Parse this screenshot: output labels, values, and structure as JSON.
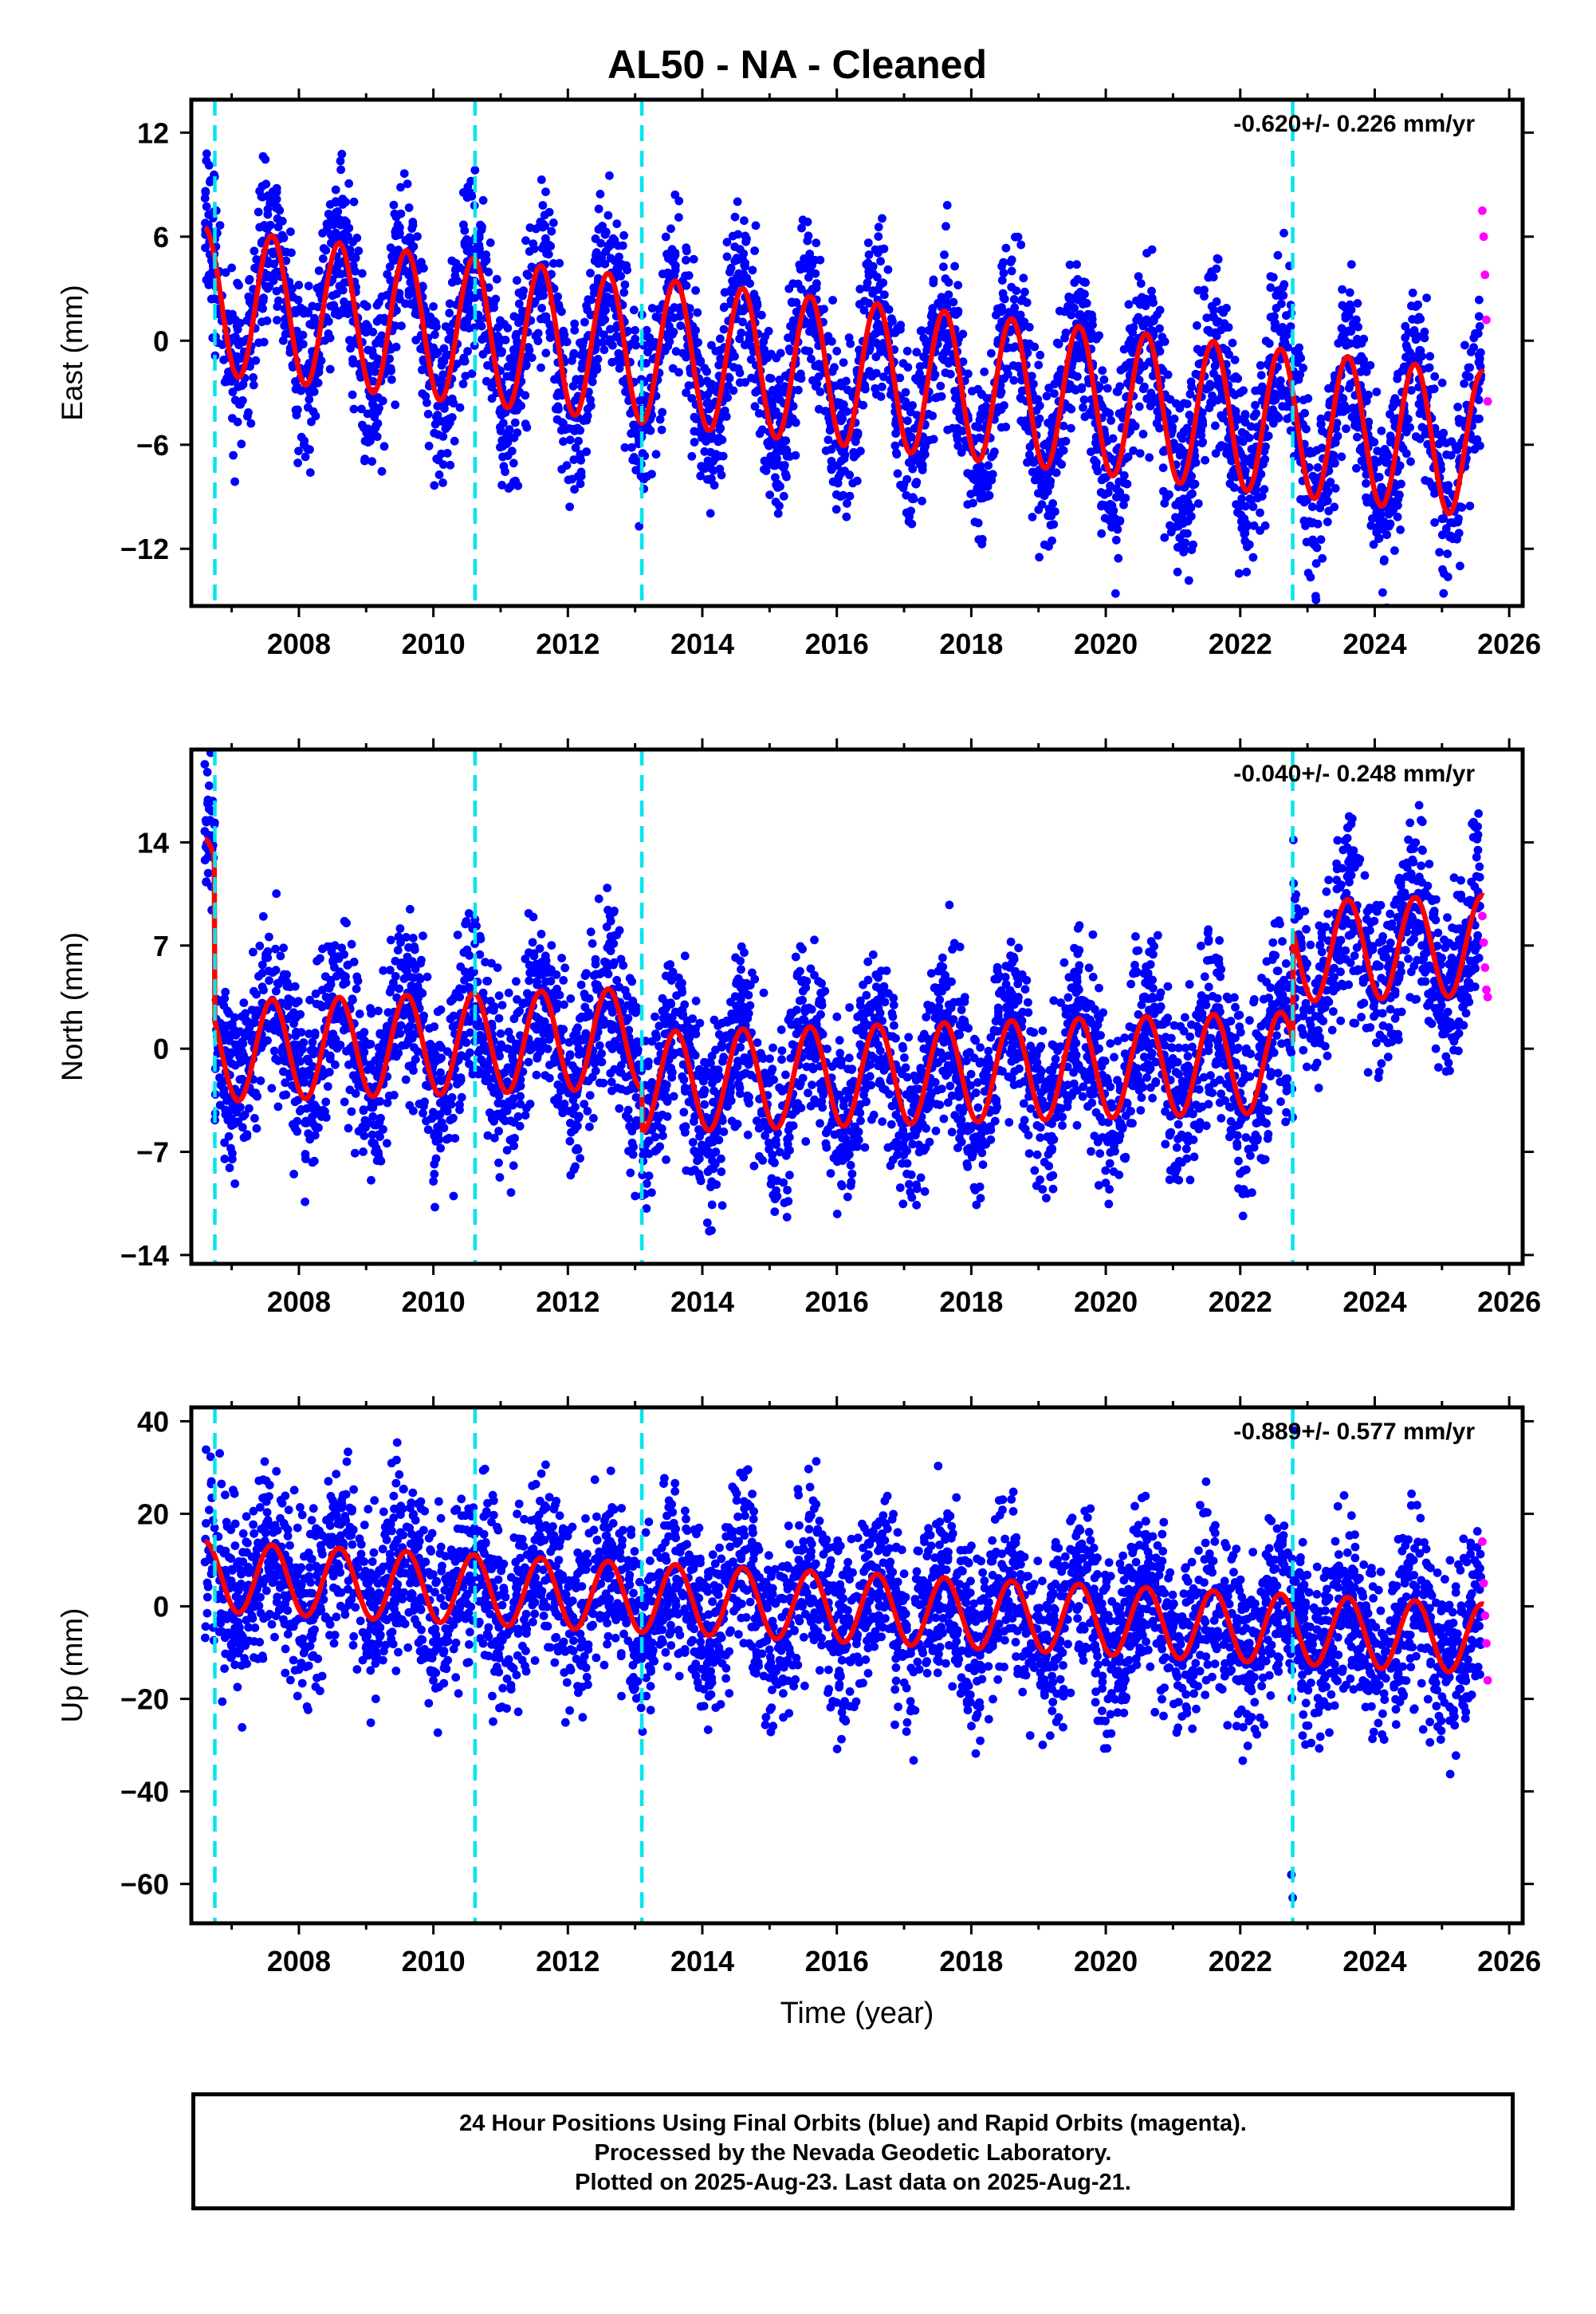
{
  "title": "AL50  - NA - Cleaned",
  "footer": {
    "line1": "24 Hour Positions Using Final Orbits (blue) and Rapid Orbits (magenta).",
    "line2": "Processed by the Nevada Geodetic Laboratory.",
    "line3": "Plotted on 2025-Aug-23. Last data on 2025-Aug-21."
  },
  "colors": {
    "final_orbits": "#0000ff",
    "rapid_orbits": "#ff00ff",
    "model_fit": "#ff0000",
    "events": "#00e5ee",
    "frame": "#000000"
  },
  "chart_data": [
    {
      "type": "scatter",
      "component": "East",
      "ylabel": "East (mm)",
      "xlabel": "",
      "rate_label": "-0.620+/- 0.226 mm/yr",
      "xlim": [
        2006.4,
        2026.2
      ],
      "ylim": [
        -15.3,
        13.9
      ],
      "xticks": [
        2008,
        2010,
        2012,
        2014,
        2016,
        2018,
        2020,
        2022,
        2024,
        2026
      ],
      "yticks": [
        12,
        6,
        0,
        -6,
        -12
      ],
      "ytick_labels": [
        "12",
        "6",
        "0",
        "−6",
        "−12"
      ],
      "event_lines": [
        2006.75,
        2010.62,
        2013.1,
        2022.78
      ],
      "series": [
        {
          "role": "final",
          "x": [
            2006.7,
            2007.0,
            2007.3,
            2007.6,
            2007.9,
            2008.2,
            2008.5,
            2008.8,
            2009.1,
            2009.4,
            2009.7,
            2010.0,
            2010.3,
            2010.6,
            2010.9,
            2011.2,
            2011.5,
            2011.8,
            2012.1,
            2012.4,
            2012.7,
            2013.0,
            2013.3,
            2013.6,
            2013.9,
            2014.2,
            2014.5,
            2014.8,
            2015.1,
            2015.4,
            2015.7,
            2016.0,
            2016.3,
            2016.6,
            2016.9,
            2017.2,
            2017.5,
            2017.8,
            2018.1,
            2018.4,
            2018.7,
            2019.0,
            2019.3,
            2019.6,
            2019.9,
            2020.2,
            2020.5,
            2020.8,
            2021.1,
            2021.4,
            2021.7,
            2022.0,
            2022.3,
            2022.6,
            2022.9,
            2023.2,
            2023.5,
            2023.8,
            2024.1,
            2024.4,
            2024.7,
            2025.0,
            2025.3,
            2025.5
          ],
          "y": [
            2.4,
            4.2,
            1.5,
            5.9,
            3.0,
            0.9,
            2.6,
            4.8,
            0.5,
            1.6,
            4.4,
            -0.4,
            -0.2,
            5.8,
            1.9,
            1.4,
            5.3,
            2.1,
            0.6,
            1.5,
            4.6,
            0.1,
            -0.1,
            4.3,
            0.6,
            -0.6,
            2.8,
            2.4,
            -1.0,
            -0.6,
            3.3,
            -0.6,
            -1.7,
            1.8,
            0.7,
            -2.3,
            -0.2,
            1.6,
            -2.8,
            -2.5,
            1.2,
            -1.4,
            -3.5,
            -1.0,
            0.3,
            -4.2,
            -3.8,
            0.7,
            -3.9,
            -4.7,
            -0.5,
            -3.0,
            -5.4,
            -2.3,
            -1.0,
            -4.5,
            -2.0,
            -0.9,
            -5.2,
            -3.6,
            -0.9,
            -5.6,
            -6.0,
            -4.5
          ]
        },
        {
          "role": "rapid",
          "x": [
            2025.6,
            2025.62,
            2025.64,
            2025.66,
            2025.68
          ],
          "y": [
            7.5,
            6.0,
            3.8,
            1.2,
            -3.5
          ]
        },
        {
          "role": "model",
          "mean": [
            2.3,
            -6.0
          ],
          "seasonal_amplitude": 4.2,
          "offsets": [
            {
              "t": 2006.75,
              "value": 0
            },
            {
              "t": 2010.62,
              "value": 0
            },
            {
              "t": 2013.1,
              "value": 0
            },
            {
              "t": 2022.78,
              "value": 0
            }
          ]
        }
      ]
    },
    {
      "type": "scatter",
      "component": "North",
      "ylabel": "North (mm)",
      "xlabel": "",
      "rate_label": "-0.040+/- 0.248 mm/yr",
      "xlim": [
        2006.4,
        2026.2
      ],
      "ylim": [
        -14.6,
        20.3
      ],
      "xticks": [
        2008,
        2010,
        2012,
        2014,
        2016,
        2018,
        2020,
        2022,
        2024,
        2026
      ],
      "yticks": [
        14,
        7,
        0,
        -7,
        -14
      ],
      "ytick_labels": [
        "14",
        "7",
        "0",
        "−7",
        "−14"
      ],
      "event_lines": [
        2006.75,
        2010.62,
        2013.1,
        2022.78
      ],
      "series": [
        {
          "role": "final",
          "x": [
            2006.6,
            2006.65,
            2006.7,
            2007.0,
            2007.3,
            2007.6,
            2007.9,
            2008.2,
            2008.5,
            2008.8,
            2009.1,
            2009.4,
            2009.7,
            2010.0,
            2010.3,
            2010.6,
            2010.9,
            2011.2,
            2011.5,
            2011.8,
            2012.1,
            2012.4,
            2012.7,
            2013.0,
            2013.3,
            2013.6,
            2013.9,
            2014.2,
            2014.5,
            2014.8,
            2015.1,
            2015.4,
            2015.7,
            2016.0,
            2016.3,
            2016.6,
            2016.9,
            2017.2,
            2017.5,
            2017.8,
            2018.1,
            2018.4,
            2018.7,
            2019.0,
            2019.3,
            2019.6,
            2019.9,
            2020.2,
            2020.5,
            2020.8,
            2021.1,
            2021.4,
            2021.7,
            2022.0,
            2022.3,
            2022.6,
            2022.9,
            2023.2,
            2023.5,
            2023.8,
            2024.1,
            2024.4,
            2024.7,
            2025.0,
            2025.3,
            2025.5
          ],
          "y": [
            19.3,
            13.5,
            11.0,
            -3.5,
            0.5,
            3.0,
            -2.5,
            -3.8,
            2.0,
            0.2,
            -4.0,
            1.5,
            1.0,
            -9.0,
            -10.0,
            2.5,
            -4.5,
            -5.0,
            1.5,
            -3.5,
            -5.5,
            -1.0,
            0.5,
            -10.0,
            -6.0,
            2.5,
            -4.0,
            -7.0,
            2.0,
            -2.0,
            -5.0,
            1.0,
            2.0,
            -5.0,
            -2.5,
            3.0,
            -3.0,
            -5.5,
            2.0,
            1.0,
            -4.0,
            -1.5,
            3.5,
            -3.5,
            -4.0,
            4.0,
            0.0,
            -4.0,
            0.5,
            3.5,
            -3.5,
            -5.0,
            2.5,
            -3.0,
            -4.5,
            4.0,
            7.5,
            2.0,
            6.5,
            3.0,
            -1.0,
            2.5,
            7.0,
            1.5,
            4.0,
            6.0
          ]
        },
        {
          "role": "rapid",
          "x": [
            2025.6,
            2025.62,
            2025.64,
            2025.66,
            2025.68
          ],
          "y": [
            9.0,
            7.2,
            5.5,
            4.0,
            3.5
          ]
        },
        {
          "role": "model",
          "mean": [
            -0.2,
            2.5
          ],
          "seasonal_amplitude": 3.4,
          "offsets": [
            {
              "t": 2006.6,
              "value": 11.0
            },
            {
              "t": 2006.75,
              "value": 0
            },
            {
              "t": 2013.1,
              "value": -3.0
            },
            {
              "t": 2022.78,
              "value": 4.5
            }
          ]
        }
      ]
    },
    {
      "type": "scatter",
      "component": "Up",
      "ylabel": "Up (mm)",
      "xlabel": "Time (year)",
      "rate_label": "-0.889+/- 0.577 mm/yr",
      "xlim": [
        2006.4,
        2026.2
      ],
      "ylim": [
        -68.5,
        43.0
      ],
      "xticks": [
        2008,
        2010,
        2012,
        2014,
        2016,
        2018,
        2020,
        2022,
        2024,
        2026
      ],
      "yticks": [
        40,
        20,
        0,
        -20,
        -40,
        -60
      ],
      "ytick_labels": [
        "40",
        "20",
        "0",
        "−20",
        "−40",
        "−60"
      ],
      "event_lines": [
        2006.75,
        2010.62,
        2013.1,
        2022.78
      ],
      "series": [
        {
          "role": "final",
          "x": [
            2006.7,
            2007.0,
            2007.3,
            2007.6,
            2007.9,
            2008.2,
            2008.5,
            2008.8,
            2009.1,
            2009.4,
            2009.7,
            2010.0,
            2010.3,
            2010.6,
            2010.9,
            2011.2,
            2011.5,
            2011.8,
            2012.1,
            2012.4,
            2012.7,
            2013.0,
            2013.3,
            2013.6,
            2013.9,
            2014.2,
            2014.5,
            2014.8,
            2015.1,
            2015.4,
            2015.7,
            2016.0,
            2016.3,
            2016.6,
            2016.9,
            2017.2,
            2017.5,
            2017.8,
            2018.1,
            2018.4,
            2018.7,
            2019.0,
            2019.3,
            2019.6,
            2019.9,
            2020.2,
            2020.5,
            2020.8,
            2021.1,
            2021.4,
            2021.7,
            2022.0,
            2022.3,
            2022.6,
            2022.76,
            2022.78,
            2022.8,
            2022.9,
            2023.2,
            2023.5,
            2023.8,
            2024.1,
            2024.4,
            2024.7,
            2025.0,
            2025.3,
            2025.5
          ],
          "y": [
            10.0,
            8.0,
            -2.0,
            12.0,
            6.0,
            -2.5,
            10.0,
            8.0,
            -3.0,
            8.0,
            7.0,
            -14.0,
            -4.0,
            12.0,
            4.0,
            -3.0,
            11.0,
            3.0,
            -4.0,
            8.0,
            5.0,
            -1.0,
            -4.0,
            8.0,
            2.0,
            -8.0,
            5.0,
            4.0,
            -14.0,
            0.0,
            5.0,
            -8.0,
            -7.0,
            5.0,
            0.0,
            -12.0,
            2.0,
            3.0,
            -10.0,
            -6.0,
            4.0,
            -8.0,
            -24.0,
            0.0,
            2.0,
            -12.0,
            -10.0,
            3.0,
            -10.0,
            -14.0,
            0.0,
            -10.0,
            -13.0,
            -2.0,
            -58.0,
            -63.0,
            38.0,
            2.0,
            -12.0,
            -3.0,
            -2.0,
            -14.0,
            -6.0,
            -1.0,
            -12.0,
            -16.0,
            -8.0
          ]
        },
        {
          "role": "rapid",
          "x": [
            2025.6,
            2025.62,
            2025.64,
            2025.66,
            2025.68
          ],
          "y": [
            14.0,
            5.0,
            -2.0,
            -8.0,
            -16.0
          ]
        },
        {
          "role": "model",
          "mean": [
            6.5,
            -7.0
          ],
          "seasonal_amplitude": 7.5,
          "offsets": []
        }
      ]
    }
  ]
}
